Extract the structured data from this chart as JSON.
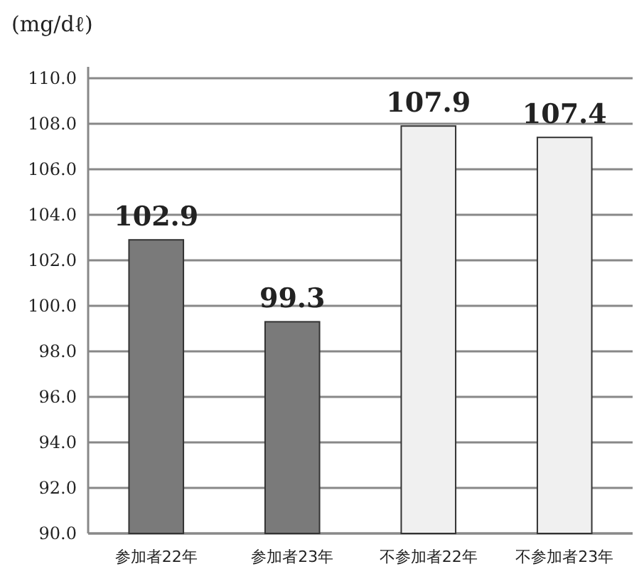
{
  "chart_data": {
    "type": "bar",
    "ylabel": "(mg/dℓ)",
    "categories": [
      "参加者22年",
      "参加者23年",
      "不参加者22年",
      "不参加者23年"
    ],
    "values": [
      102.9,
      99.3,
      107.9,
      107.4
    ],
    "colors": [
      "#7a7a7a",
      "#7a7a7a",
      "#f0f0f0",
      "#f0f0f0"
    ],
    "ylim": [
      90,
      110
    ],
    "yticks": [
      {
        "value": 90,
        "label": "90.0"
      },
      {
        "value": 92,
        "label": "92.0"
      },
      {
        "value": 94,
        "label": "94.0"
      },
      {
        "value": 96,
        "label": "96.0"
      },
      {
        "value": 98,
        "label": "98.0"
      },
      {
        "value": 100,
        "label": "100.0"
      },
      {
        "value": 102,
        "label": "102.0"
      },
      {
        "value": 104,
        "label": "104.0"
      },
      {
        "value": 106,
        "label": "106.0"
      },
      {
        "value": 108,
        "label": "108.0"
      },
      {
        "value": 110,
        "label": "110.0"
      }
    ],
    "grid": "y",
    "data_labels": true
  }
}
